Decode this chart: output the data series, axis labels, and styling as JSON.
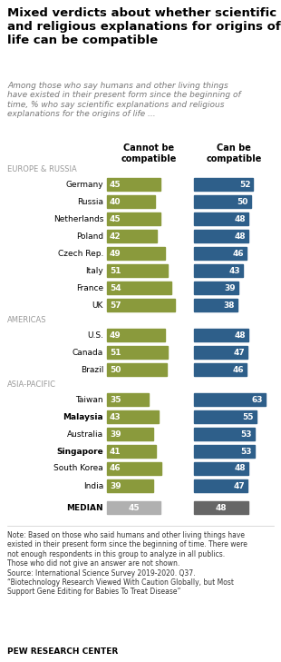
{
  "title": "Mixed verdicts about whether scientific\nand religious explanations for origins of\nlife can be compatible",
  "subtitle": "Among those who say humans and other living things\nhave existed in their present form since the beginning of\ntime, % who say scientific explanations and religious\nexplanations for the origins of life ...",
  "col1_header": "Cannot be\ncompatible",
  "col2_header": "Can be\ncompatible",
  "countries": [
    {
      "label": "Germany",
      "cannot": 45,
      "can": 52,
      "bold": false,
      "region_before": "EUROPE & RUSSIA"
    },
    {
      "label": "Russia",
      "cannot": 40,
      "can": 50,
      "bold": false,
      "region_before": null
    },
    {
      "label": "Netherlands",
      "cannot": 45,
      "can": 48,
      "bold": false,
      "region_before": null
    },
    {
      "label": "Poland",
      "cannot": 42,
      "can": 48,
      "bold": false,
      "region_before": null
    },
    {
      "label": "Czech Rep.",
      "cannot": 49,
      "can": 46,
      "bold": false,
      "region_before": null
    },
    {
      "label": "Italy",
      "cannot": 51,
      "can": 43,
      "bold": false,
      "region_before": null
    },
    {
      "label": "France",
      "cannot": 54,
      "can": 39,
      "bold": false,
      "region_before": null
    },
    {
      "label": "UK",
      "cannot": 57,
      "can": 38,
      "bold": false,
      "region_before": null
    },
    {
      "label": "U.S.",
      "cannot": 49,
      "can": 48,
      "bold": false,
      "region_before": "AMERICAS"
    },
    {
      "label": "Canada",
      "cannot": 51,
      "can": 47,
      "bold": false,
      "region_before": null
    },
    {
      "label": "Brazil",
      "cannot": 50,
      "can": 46,
      "bold": false,
      "region_before": null
    },
    {
      "label": "Taiwan",
      "cannot": 35,
      "can": 63,
      "bold": false,
      "region_before": "ASIA-PACIFIC"
    },
    {
      "label": "Malaysia",
      "cannot": 43,
      "can": 55,
      "bold": true,
      "region_before": null
    },
    {
      "label": "Australia",
      "cannot": 39,
      "can": 53,
      "bold": false,
      "region_before": null
    },
    {
      "label": "Singapore",
      "cannot": 41,
      "can": 53,
      "bold": true,
      "region_before": null
    },
    {
      "label": "South Korea",
      "cannot": 46,
      "can": 48,
      "bold": false,
      "region_before": null
    },
    {
      "label": "India",
      "cannot": 39,
      "can": 47,
      "bold": false,
      "region_before": null
    }
  ],
  "median": {
    "cannot": 45,
    "can": 48
  },
  "color_cannot": "#8a9a3c",
  "color_can": "#2e5f8a",
  "color_median_cannot": "#b0b0b0",
  "color_median_can": "#666666",
  "note": "Note: Based on those who said humans and other living things have\nexisted in their present form since the beginning of time. There were\nnot enough respondents in this group to analyze in all publics.\nThose who did not give an answer are not shown.\nSource: International Science Survey 2019-2020. Q37.\n“Biotechnology Research Viewed With Caution Globally, but Most\nSupport Gene Editing for Babies To Treat Disease”",
  "footer": "PEW RESEARCH CENTER"
}
